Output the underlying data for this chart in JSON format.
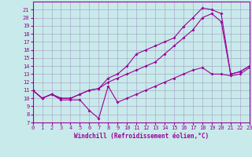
{
  "xlabel": "Windchill (Refroidissement éolien,°C)",
  "bg_color": "#c8eaea",
  "line_color": "#990099",
  "grid_color": "#aaaacc",
  "ylim": [
    7,
    22
  ],
  "xlim": [
    0,
    23
  ],
  "yticks": [
    7,
    8,
    9,
    10,
    11,
    12,
    13,
    14,
    15,
    16,
    17,
    18,
    19,
    20,
    21
  ],
  "xticks": [
    0,
    1,
    2,
    3,
    4,
    5,
    6,
    7,
    8,
    9,
    10,
    11,
    12,
    13,
    14,
    15,
    16,
    17,
    18,
    19,
    20,
    21,
    22,
    23
  ],
  "line1_x": [
    0,
    1,
    2,
    3,
    4,
    5,
    6,
    7,
    8,
    9,
    10,
    11,
    12,
    13,
    14,
    15,
    16,
    17,
    18,
    19,
    20,
    21,
    22,
    23
  ],
  "line1_y": [
    11,
    10,
    10.5,
    9.8,
    9.8,
    9.8,
    8.5,
    7.5,
    11.5,
    9.5,
    10,
    10.5,
    11,
    11.5,
    12,
    12.5,
    13,
    13.5,
    13.8,
    13.0,
    13.0,
    12.8,
    13.0,
    13.8
  ],
  "line2_x": [
    0,
    1,
    2,
    3,
    4,
    5,
    6,
    7,
    8,
    9,
    10,
    11,
    12,
    13,
    14,
    15,
    16,
    17,
    18,
    19,
    20,
    21,
    22,
    23
  ],
  "line2_y": [
    11,
    10,
    10.5,
    10,
    10,
    10.5,
    11,
    11.2,
    12,
    12.5,
    13,
    13.5,
    14,
    14.5,
    15.5,
    16.5,
    17.5,
    18.5,
    20,
    20.5,
    19.5,
    13,
    13.3,
    14
  ],
  "line3_x": [
    0,
    1,
    2,
    3,
    4,
    5,
    6,
    7,
    8,
    9,
    10,
    11,
    12,
    13,
    14,
    15,
    16,
    17,
    18,
    19,
    20,
    21,
    22,
    23
  ],
  "line3_y": [
    11,
    10,
    10.5,
    10,
    10,
    10.5,
    11,
    11.2,
    12.5,
    13,
    14,
    15.5,
    16,
    16.5,
    17,
    17.5,
    18.9,
    20,
    21.2,
    21,
    20.5,
    13,
    13.3,
    14
  ]
}
